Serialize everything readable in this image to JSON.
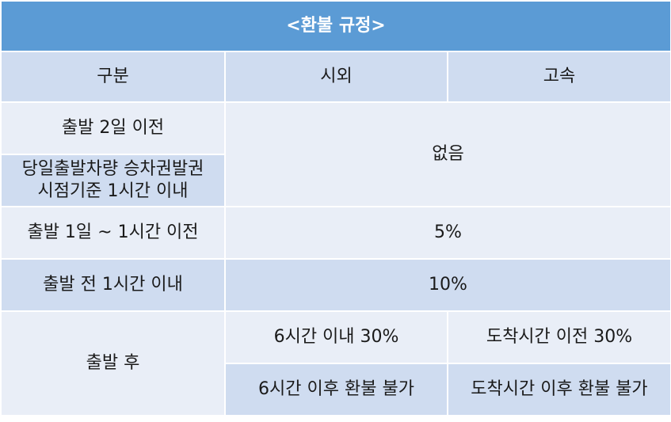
{
  "title": "<환불 규정>",
  "headers": {
    "category": "구분",
    "intercity": "시외",
    "express": "고속"
  },
  "rows": {
    "two_days_before": "출발 2일 이전",
    "same_day_line1": "당일출발차량 승차권발권",
    "same_day_line2": "시점기준 1시간 이내",
    "no_fee": "없음",
    "one_day_to_one_hour": "출발 1일 ~ 1시간 이전",
    "fee_5": "5%",
    "within_one_hour": "출발 전 1시간 이내",
    "fee_10": "10%",
    "after_departure": "출발 후",
    "intercity_within_6h": "6시간 이내 30%",
    "express_before_arrival": "도착시간 이전 30%",
    "intercity_after_6h": "6시간 이후 환불 불가",
    "express_after_arrival": "도착시간 이후 환불 불가"
  },
  "colors": {
    "title_bg": "#5b9bd5",
    "header_bg": "#cfdcf0",
    "light_row_bg": "#e9eef7",
    "dark_row_bg": "#cfdcf0"
  }
}
